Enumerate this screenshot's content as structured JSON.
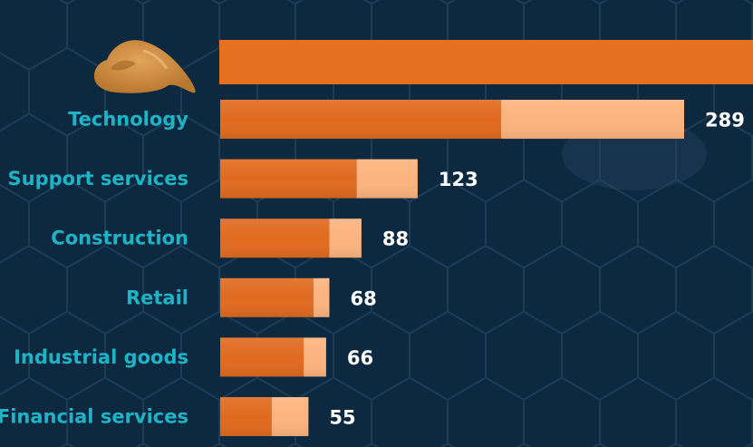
{
  "chart_data": {
    "type": "bar",
    "orientation": "horizontal",
    "stacked": true,
    "categories": [
      "Technology",
      "Support services",
      "Construction",
      "Retail",
      "Industrial goods",
      "Financial services"
    ],
    "series": [
      {
        "values": [
          175,
          85,
          68,
          58,
          52,
          32
        ]
      },
      {
        "values": [
          114,
          38,
          20,
          10,
          14,
          23
        ]
      }
    ],
    "totals": [
      289,
      123,
      88,
      68,
      66,
      55
    ],
    "top_bar_value_visible": false,
    "xlim": [
      0,
      289
    ],
    "grid": false,
    "legend": "none"
  },
  "colors": {
    "background": "#0d2940",
    "hex_line": "#1c3d56",
    "series_dark": "#e06a1f",
    "series_light": "#fdb37e",
    "top_bar": "#e5701f",
    "category_text": "#1fb3c6",
    "value_text": "#ffffff"
  },
  "icons": {
    "top_icon": "poop-icon"
  }
}
